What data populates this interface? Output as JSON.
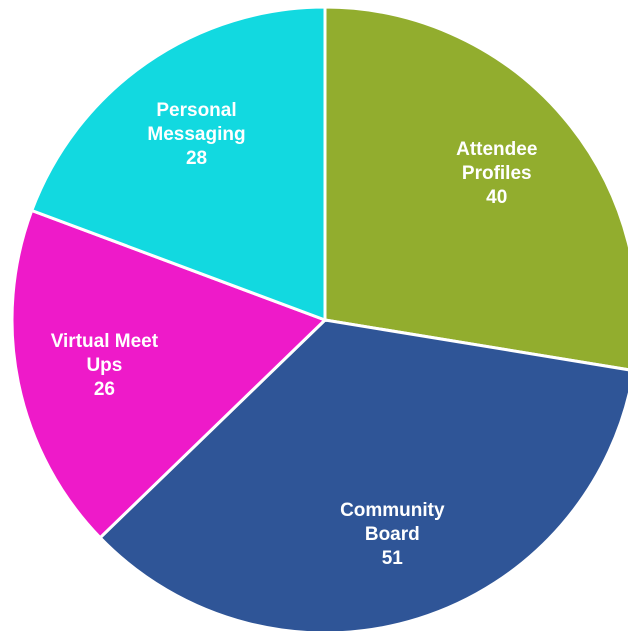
{
  "chart_data": {
    "type": "pie",
    "categories": [
      "Attendee Profiles",
      "Community Board",
      "Virtual Meet Ups",
      "Personal Messaging"
    ],
    "values": [
      40,
      51,
      26,
      28
    ],
    "colors": [
      "#92ad2e",
      "#2f5597",
      "#ee1ac9",
      "#12d9e0"
    ]
  }
}
